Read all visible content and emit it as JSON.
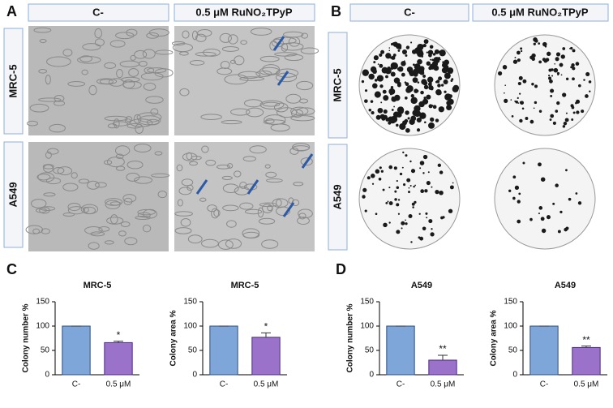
{
  "panels": {
    "a": "A",
    "b": "B",
    "c": "C",
    "d": "D"
  },
  "headers": {
    "control": "C-",
    "treated": "0.5 μM RuNO₂TPyP"
  },
  "rows": {
    "first": "MRC-5",
    "second": "A549"
  },
  "chart_data": [
    {
      "type": "bar",
      "title": "MRC-5",
      "ylabel": "Colony number %",
      "categories": [
        "C-",
        "0.5 μM"
      ],
      "values": [
        100,
        66
      ],
      "errors": [
        0,
        3
      ],
      "colors": [
        "#7fa6d9",
        "#9b72c9"
      ],
      "ylim": [
        0,
        150
      ],
      "yticks": [
        0,
        50,
        100,
        150
      ],
      "annotations": [
        {
          "text": "*",
          "at": "0.5 μM"
        }
      ]
    },
    {
      "type": "bar",
      "title": "MRC-5",
      "ylabel": "Colony area %",
      "categories": [
        "C-",
        "0.5 μM"
      ],
      "values": [
        100,
        77
      ],
      "errors": [
        0,
        9
      ],
      "colors": [
        "#7fa6d9",
        "#9b72c9"
      ],
      "ylim": [
        0,
        150
      ],
      "yticks": [
        0,
        50,
        100,
        150
      ],
      "annotations": [
        {
          "text": "*",
          "at": "0.5 μM"
        }
      ]
    },
    {
      "type": "bar",
      "title": "A549",
      "ylabel": "Colony number %",
      "categories": [
        "C-",
        "0.5 μM"
      ],
      "values": [
        100,
        30
      ],
      "errors": [
        0,
        10
      ],
      "colors": [
        "#7fa6d9",
        "#9b72c9"
      ],
      "ylim": [
        0,
        150
      ],
      "yticks": [
        0,
        50,
        100,
        150
      ],
      "annotations": [
        {
          "text": "**",
          "at": "0.5 μM"
        }
      ]
    },
    {
      "type": "bar",
      "title": "A549",
      "ylabel": "Colony area %",
      "categories": [
        "C-",
        "0.5 μM"
      ],
      "values": [
        100,
        56
      ],
      "errors": [
        0,
        3
      ],
      "colors": [
        "#7fa6d9",
        "#9b72c9"
      ],
      "ylim": [
        0,
        150
      ],
      "yticks": [
        0,
        50,
        100,
        150
      ],
      "annotations": [
        {
          "text": "**",
          "at": "0.5 μM"
        }
      ]
    }
  ]
}
